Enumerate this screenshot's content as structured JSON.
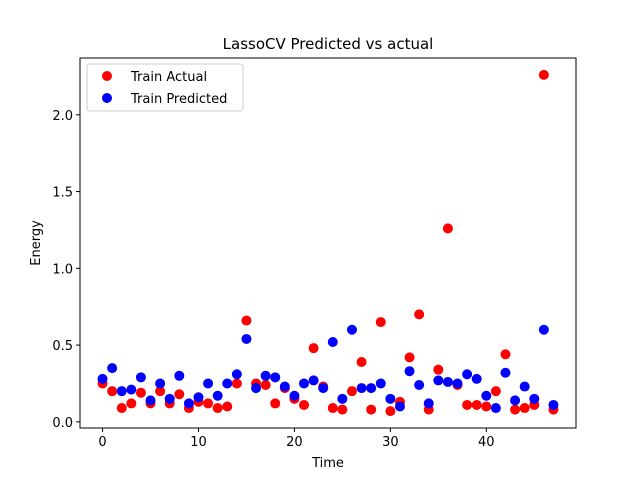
{
  "chart_data": {
    "type": "scatter",
    "title": "LassoCV Predicted vs actual",
    "xlabel": "Time",
    "ylabel": "Energy",
    "xlim": [
      -2.35,
      49.35
    ],
    "ylim": [
      -0.04,
      2.37
    ],
    "xticks": [
      0,
      10,
      20,
      30,
      40
    ],
    "yticks": [
      0.0,
      0.5,
      1.0,
      1.5,
      2.0
    ],
    "xtick_labels": [
      "0",
      "10",
      "20",
      "30",
      "40"
    ],
    "ytick_labels": [
      "0.0",
      "0.5",
      "1.0",
      "1.5",
      "2.0"
    ],
    "grid": false,
    "legend_position": "upper-left",
    "series": [
      {
        "name": "Train Actual",
        "color": "#ff0000",
        "x": [
          0,
          1,
          2,
          3,
          4,
          5,
          6,
          7,
          8,
          9,
          10,
          11,
          12,
          13,
          14,
          15,
          16,
          17,
          18,
          19,
          20,
          21,
          22,
          23,
          24,
          25,
          26,
          27,
          28,
          29,
          30,
          31,
          32,
          33,
          34,
          35,
          36,
          37,
          38,
          39,
          40,
          41,
          42,
          43,
          44,
          45,
          46,
          47
        ],
        "y": [
          0.25,
          0.2,
          0.09,
          0.12,
          0.19,
          0.12,
          0.2,
          0.12,
          0.18,
          0.09,
          0.13,
          0.12,
          0.09,
          0.1,
          0.25,
          0.66,
          0.25,
          0.24,
          0.12,
          0.22,
          0.15,
          0.11,
          0.48,
          0.23,
          0.09,
          0.08,
          0.2,
          0.39,
          0.08,
          0.65,
          0.07,
          0.13,
          0.42,
          0.7,
          0.08,
          0.34,
          1.26,
          0.24,
          0.11,
          0.11,
          0.1,
          0.2,
          0.44,
          0.08,
          0.09,
          0.11,
          2.26,
          0.08
        ]
      },
      {
        "name": "Train Predicted",
        "color": "#0000ff",
        "x": [
          0,
          1,
          2,
          3,
          4,
          5,
          6,
          7,
          8,
          9,
          10,
          11,
          12,
          13,
          14,
          15,
          16,
          17,
          18,
          19,
          20,
          21,
          22,
          23,
          24,
          25,
          26,
          27,
          28,
          29,
          30,
          31,
          32,
          33,
          34,
          35,
          36,
          37,
          38,
          39,
          40,
          41,
          42,
          43,
          44,
          45,
          46,
          47
        ],
        "y": [
          0.28,
          0.35,
          0.2,
          0.21,
          0.29,
          0.14,
          0.25,
          0.15,
          0.3,
          0.12,
          0.16,
          0.25,
          0.17,
          0.25,
          0.31,
          0.54,
          0.22,
          0.3,
          0.29,
          0.23,
          0.17,
          0.25,
          0.27,
          0.22,
          0.52,
          0.15,
          0.6,
          0.22,
          0.22,
          0.25,
          0.15,
          0.1,
          0.33,
          0.24,
          0.12,
          0.27,
          0.26,
          0.25,
          0.31,
          0.28,
          0.17,
          0.09,
          0.32,
          0.14,
          0.23,
          0.15,
          0.6,
          0.11
        ]
      }
    ]
  }
}
